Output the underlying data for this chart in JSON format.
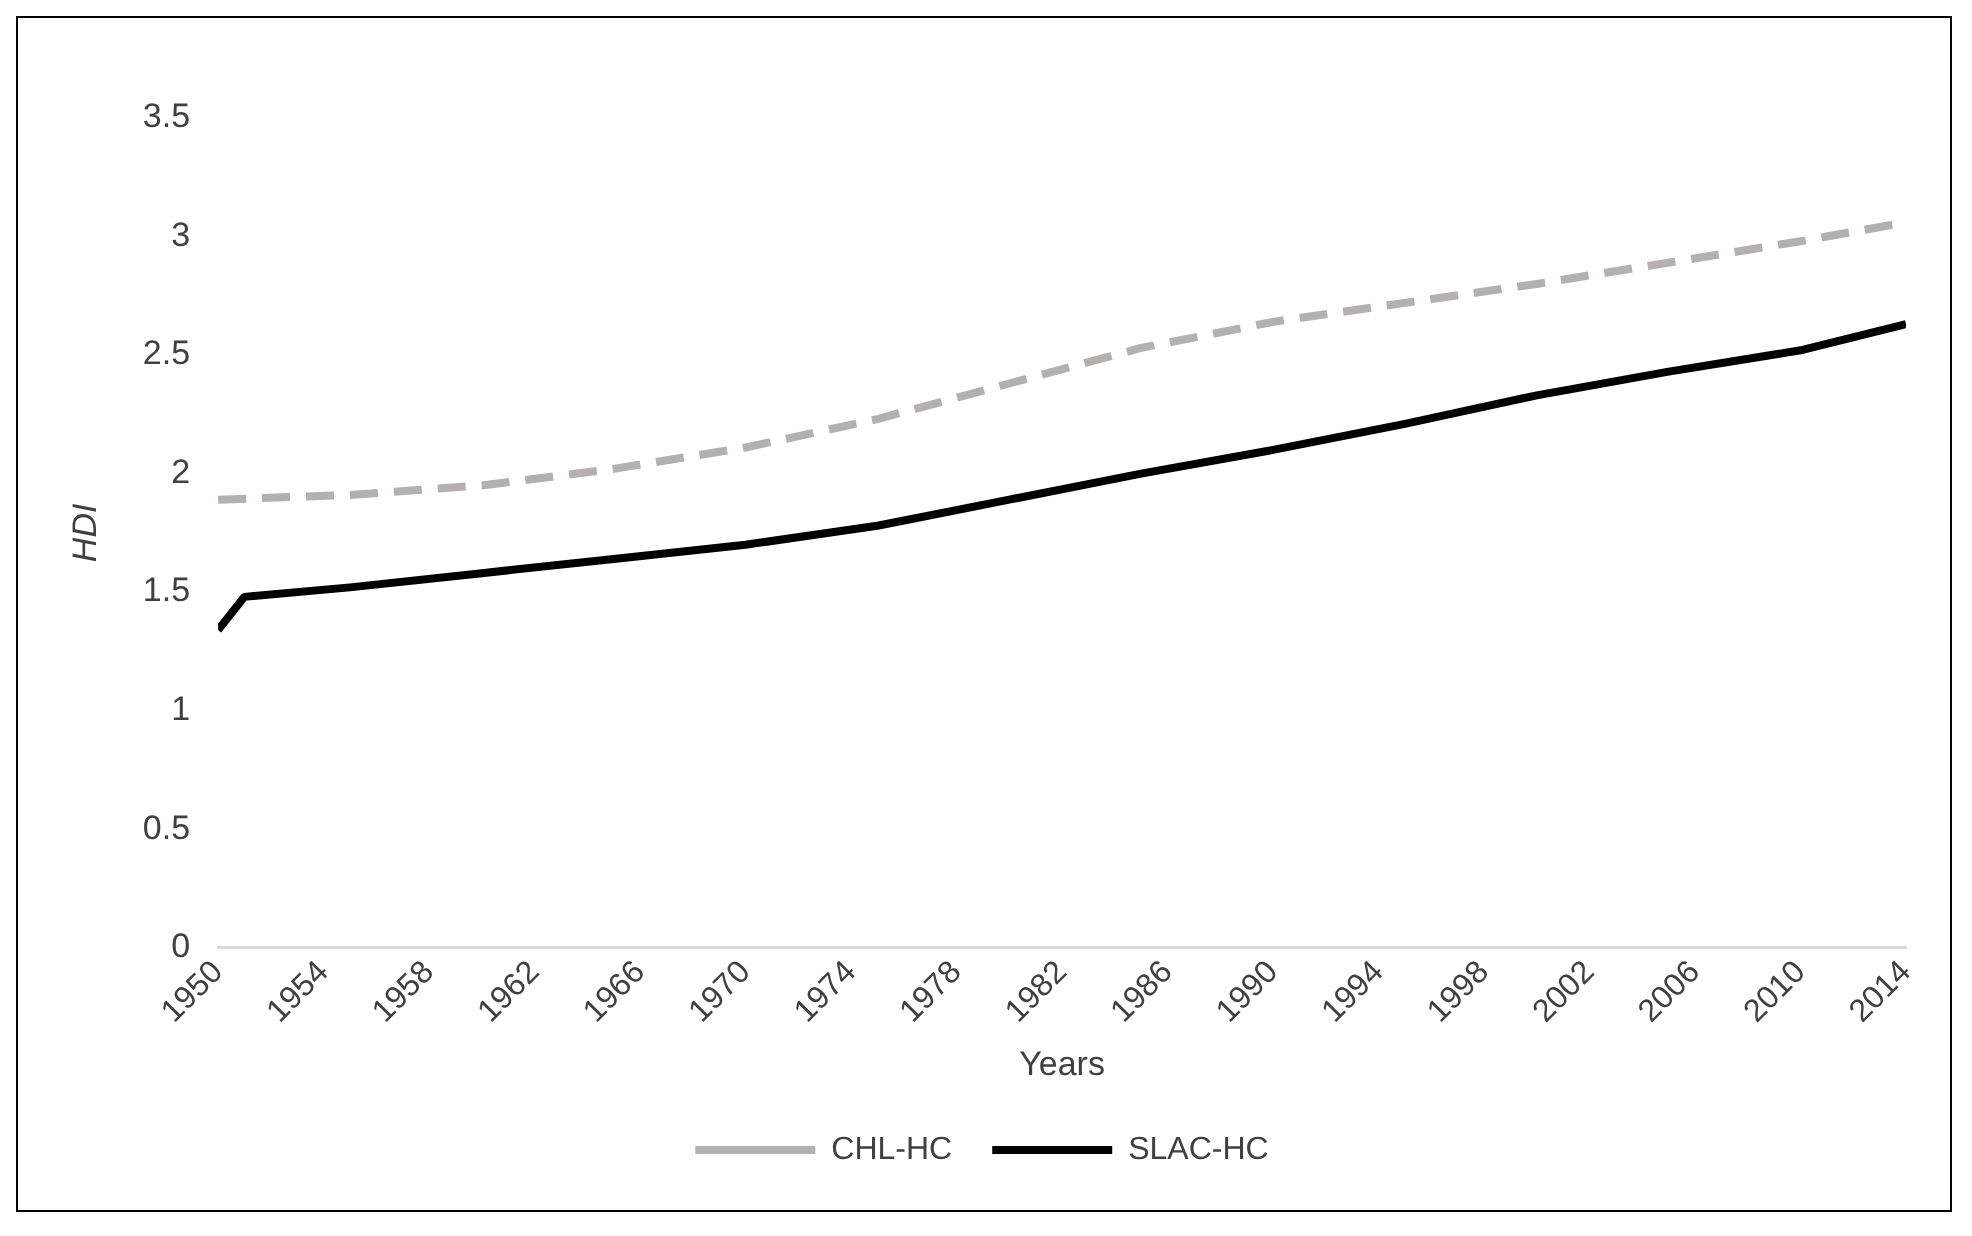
{
  "chart_data": {
    "type": "line",
    "xlabel": "Years",
    "ylabel": "HDI",
    "xlim": [
      1950,
      2014
    ],
    "xticks": [
      1950,
      1954,
      1958,
      1962,
      1966,
      1970,
      1974,
      1978,
      1982,
      1986,
      1990,
      1994,
      1998,
      2002,
      2006,
      2010,
      2014
    ],
    "ylim": [
      0,
      3.5
    ],
    "yticks": [
      0,
      0.5,
      1,
      1.5,
      2,
      2.5,
      3,
      3.5
    ],
    "grid": false,
    "legend": "bottom",
    "marker": "none",
    "series": [
      {
        "name": "CHL-HC",
        "color": "#b4b0b0",
        "line_style": "dashed",
        "x": [
          1950,
          1955,
          1960,
          1965,
          1970,
          1975,
          1980,
          1985,
          1990,
          1995,
          2000,
          2005,
          2010,
          2014
        ],
        "values": [
          1.89,
          1.91,
          1.95,
          2.02,
          2.11,
          2.23,
          2.38,
          2.53,
          2.64,
          2.72,
          2.8,
          2.89,
          2.98,
          3.06
        ]
      },
      {
        "name": "SLAC-HC",
        "color": "#000000",
        "line_style": "solid",
        "x": [
          1950,
          1951,
          1955,
          1960,
          1965,
          1970,
          1975,
          1980,
          1985,
          1990,
          1995,
          2000,
          2005,
          2010,
          2014
        ],
        "values": [
          1.34,
          1.48,
          1.52,
          1.58,
          1.64,
          1.7,
          1.78,
          1.89,
          2.0,
          2.1,
          2.21,
          2.33,
          2.43,
          2.52,
          2.63
        ]
      }
    ]
  }
}
